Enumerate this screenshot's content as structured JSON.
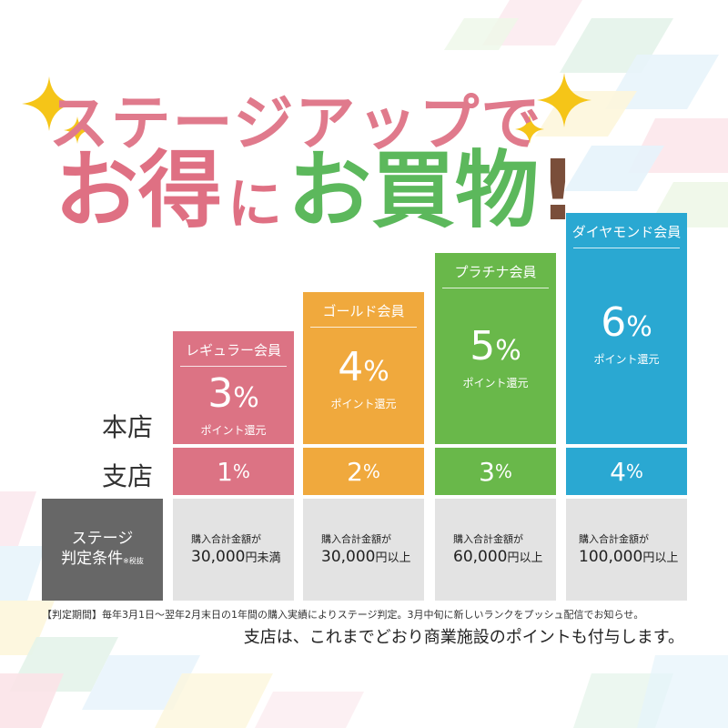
{
  "headline": {
    "line1": "ステージアップで",
    "line2_part1": "お得",
    "line2_part2": "に",
    "line2_part3": "お買物",
    "line2_part4": "!"
  },
  "row_labels": {
    "main_store": "本店",
    "branch": "支店"
  },
  "tiers": [
    {
      "name": "レギュラー会員",
      "main_percent": "3",
      "unit": "%",
      "main_suffix": "ポイント還元",
      "branch_percent": "1",
      "condition_label": "購入合計金額が",
      "condition_amount": "30,000",
      "condition_unit": "円未満",
      "color": "#dc7384"
    },
    {
      "name": "ゴールド会員",
      "main_percent": "4",
      "unit": "%",
      "main_suffix": "ポイント還元",
      "branch_percent": "2",
      "condition_label": "購入合計金額が",
      "condition_amount": "30,000",
      "condition_unit": "円以上",
      "color": "#f0a93d"
    },
    {
      "name": "プラチナ会員",
      "main_percent": "5",
      "unit": "%",
      "main_suffix": "ポイント還元",
      "branch_percent": "3",
      "condition_label": "購入合計金額が",
      "condition_amount": "60,000",
      "condition_unit": "円以上",
      "color": "#69b84a"
    },
    {
      "name": "ダイヤモンド会員",
      "main_percent": "6",
      "unit": "%",
      "main_suffix": "ポイント還元",
      "branch_percent": "4",
      "condition_label": "購入合計金額が",
      "condition_amount": "100,000",
      "condition_unit": "円以上",
      "color": "#2aa8d2"
    }
  ],
  "condition_header": {
    "line1": "ステージ",
    "line2": "判定条件",
    "note": "※税抜"
  },
  "notes": {
    "period": "【判定期間】毎年3月1日～翌年2月末日の1年間の購入実績によりステージ判定。3月中旬に新しいランクをプッシュ配信でお知らせ。",
    "branch": "支店は、これまでどおり商業施設のポイントも付与します。"
  },
  "colors": {
    "headline_pink": "#df7083",
    "headline_green": "#5cb85c",
    "sparkle": "#f5c518",
    "condition_bg": "#e3e3e3",
    "condition_header_bg": "#676767"
  },
  "icons": [
    "sparkle-icon"
  ]
}
